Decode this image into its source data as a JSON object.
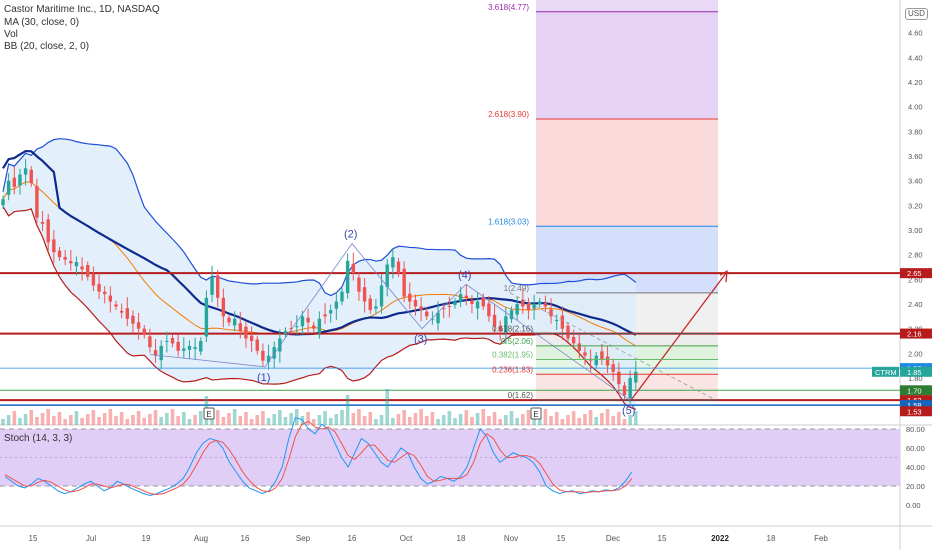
{
  "header": {
    "title": "Castor Maritime Inc., 1D, NASDAQ",
    "ind_ma": "MA (30, close, 0)",
    "ind_vol": "Vol",
    "ind_bb": "BB (20, close, 2, 0)",
    "stoch": "Stoch (14, 3, 3)",
    "currency": "USD"
  },
  "colors": {
    "up": "#26a69a",
    "down": "#ef5350",
    "ma": "#0d2a8c",
    "bb_band": "#1e50d6",
    "bb_lower": "#b71c1c",
    "bb_mid": "#f57c00",
    "level": "#b71c1c",
    "stoch_k": "#2196f3",
    "stoch_d": "#ef5350",
    "stoch_bg": "#d9c2f5"
  },
  "chart_data": [
    {
      "type": "candlestick",
      "title": "Castor Maritime Inc., 1D, NASDAQ",
      "x_tick_labels": [
        "15",
        "Jul",
        "19",
        "Aug",
        "16",
        "Sep",
        "16",
        "Oct",
        "18",
        "Nov",
        "15",
        "Dec",
        "15",
        "2022",
        "18",
        "Feb"
      ],
      "y_tick_labels": [
        "4.60",
        "4.40",
        "4.20",
        "4.00",
        "3.80",
        "3.60",
        "3.40",
        "3.20",
        "3.00",
        "2.80",
        "2.60",
        "2.40",
        "2.20",
        "2.00",
        "1.80"
      ],
      "ylim": [
        1.53,
        4.9
      ],
      "close": [
        3.25,
        3.4,
        3.35,
        3.45,
        3.5,
        3.38,
        3.1,
        3.05,
        2.9,
        2.82,
        2.78,
        2.76,
        2.73,
        2.74,
        2.68,
        2.62,
        2.55,
        2.5,
        2.48,
        2.42,
        2.38,
        2.33,
        2.28,
        2.24,
        2.2,
        2.15,
        2.05,
        1.98,
        2.06,
        2.1,
        2.08,
        2.02,
        2.04,
        2.06,
        2.05,
        2.1,
        2.45,
        2.62,
        2.45,
        2.3,
        2.25,
        2.28,
        2.18,
        2.12,
        2.1,
        2.02,
        1.94,
        1.98,
        2.05,
        2.12,
        2.18,
        2.2,
        2.22,
        2.3,
        2.25,
        2.2,
        2.28,
        2.3,
        2.35,
        2.42,
        2.5,
        2.75,
        2.65,
        2.5,
        2.42,
        2.35,
        2.38,
        2.55,
        2.72,
        2.78,
        2.65,
        2.46,
        2.42,
        2.38,
        2.35,
        2.3,
        2.28,
        2.33,
        2.36,
        2.38,
        2.42,
        2.48,
        2.45,
        2.4,
        2.42,
        2.38,
        2.3,
        2.22,
        2.18,
        2.3,
        2.35,
        2.4,
        2.38,
        2.35,
        2.4,
        2.42,
        2.38,
        2.3,
        2.27,
        2.2,
        2.12,
        2.08,
        2.02,
        1.98,
        1.94,
        1.98,
        1.95,
        1.9,
        1.85,
        1.75,
        1.66,
        1.8,
        1.85
      ],
      "overlays": {
        "ma_30": "dark blue line",
        "bollinger_bands": "blue upper band, red lower band, orange basis, light blue fill"
      },
      "price_levels": [
        {
          "label": "2.65",
          "value": 2.65,
          "color": "#b71c1c"
        },
        {
          "label": "2.16",
          "value": 2.16,
          "color": "#b71c1c"
        },
        {
          "label": "1.88",
          "value": 1.88,
          "color": "#1e88e5"
        },
        {
          "label": "1.85",
          "value": 1.85,
          "color": "#26a69a"
        },
        {
          "label": "1.70",
          "value": 1.7,
          "color": "#2e7d32"
        },
        {
          "label": "1.62",
          "value": 1.62,
          "color": "#b71c1c"
        },
        {
          "label": "1.58",
          "value": 1.58,
          "color": "#1565c0"
        },
        {
          "label": "1.53",
          "value": 1.53,
          "color": "#b71c1c"
        }
      ],
      "symbol_tag": "CTRM",
      "fib_levels": [
        {
          "label": "3.618(4.77)",
          "value": 4.77,
          "color": "#9c27b0"
        },
        {
          "label": "2.618(3.90)",
          "value": 3.9,
          "color": "#e53935"
        },
        {
          "label": "1.618(3.03)",
          "value": 3.03,
          "color": "#1e88e5"
        },
        {
          "label": "1(2.49)",
          "value": 2.49,
          "color": "#777777"
        },
        {
          "label": "0.618(2.16)",
          "value": 2.16,
          "color": "#555555"
        },
        {
          "label": "0.5(2.06)",
          "value": 2.06,
          "color": "#43a047"
        },
        {
          "label": "0.382(1.95)",
          "value": 1.95,
          "color": "#66bb6a"
        },
        {
          "label": "0.236(1.83)",
          "value": 1.83,
          "color": "#e53935"
        },
        {
          "label": "0(1.62)",
          "value": 1.62,
          "color": "#555555"
        }
      ],
      "wave_labels": [
        "(1)",
        "(2)",
        "(3)",
        "(4)",
        "(5)"
      ],
      "earnings_markers": [
        "E",
        "E"
      ]
    },
    {
      "type": "line",
      "title": "Stoch (14, 3, 3)",
      "y_tick_labels": [
        "80.00",
        "60.00",
        "40.00",
        "20.00",
        "0.00"
      ],
      "ylim": [
        0,
        100
      ],
      "bands": [
        20,
        80
      ],
      "series": [
        {
          "values": [
            30,
            25,
            20,
            18,
            22,
            28,
            25,
            20,
            15,
            12,
            14,
            18,
            22,
            25,
            20,
            15,
            18,
            25,
            22,
            18,
            15,
            12,
            10,
            12,
            15,
            18,
            22,
            28,
            40,
            55,
            65,
            70,
            68,
            60,
            45,
            35,
            25,
            18,
            15,
            12,
            15,
            25,
            40,
            70,
            92,
            90,
            80,
            75,
            85,
            80,
            65,
            50,
            40,
            55,
            70,
            65,
            55,
            45,
            40,
            50,
            60,
            55,
            40,
            28,
            22,
            25,
            30,
            28,
            25,
            30,
            40,
            60,
            80,
            72,
            55,
            45,
            50,
            55,
            52,
            50,
            45,
            35,
            20,
            15,
            12,
            14,
            15,
            12,
            13,
            15,
            14,
            16,
            15,
            18,
            25,
            35
          ]
        },
        {
          "values": [
            32,
            28,
            24,
            20,
            20,
            24,
            26,
            24,
            20,
            16,
            14,
            15,
            18,
            22,
            22,
            20,
            18,
            20,
            22,
            21,
            18,
            15,
            12,
            11,
            12,
            15,
            18,
            22,
            30,
            42,
            55,
            65,
            68,
            66,
            58,
            47,
            35,
            26,
            19,
            15,
            14,
            18,
            28,
            48,
            72,
            85,
            88,
            82,
            80,
            82,
            77,
            65,
            52,
            48,
            55,
            63,
            63,
            55,
            47,
            45,
            50,
            55,
            52,
            42,
            30,
            25,
            26,
            28,
            28,
            28,
            32,
            45,
            65,
            75,
            70,
            58,
            50,
            50,
            52,
            52,
            50,
            44,
            33,
            22,
            16,
            14,
            14,
            14,
            13,
            14,
            14,
            15,
            15,
            16,
            20,
            28
          ]
        }
      ]
    }
  ]
}
